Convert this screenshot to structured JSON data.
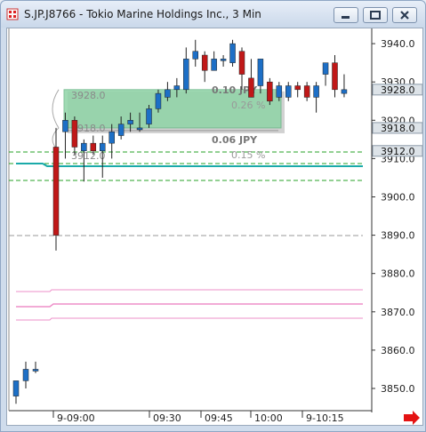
{
  "window": {
    "title": "S.JP.J8766 - Tokio Marine Holdings Inc., 3 Min",
    "controls": [
      "minimize",
      "maximize",
      "close"
    ]
  },
  "chart_data": {
    "type": "candlestick",
    "symbol": "S.JP.J8766",
    "interval": "3 Min",
    "ylim": [
      3843,
      3948
    ],
    "y_ticks": [
      "3940.0",
      "3930.0",
      "3920.0",
      "3910.0",
      "3900.0",
      "3890.0",
      "3880.0",
      "3870.0",
      "3860.0",
      "3850.0"
    ],
    "x_ticks": [
      "9-09:00",
      "09:30",
      "09:45",
      "10:00",
      "9-10:15"
    ],
    "price_markers": [
      {
        "value": 3928,
        "label": "3928.0"
      },
      {
        "value": 3918,
        "label": "3918.0"
      },
      {
        "value": 3912,
        "label": "3912.0"
      }
    ],
    "candles": [
      {
        "o": 3848,
        "h": 3852,
        "l": 3846,
        "c": 3852
      },
      {
        "o": 3852,
        "h": 3857,
        "l": 3850,
        "c": 3855
      },
      {
        "o": 3855,
        "h": 3857,
        "l": 3854,
        "c": 3855
      },
      {
        "o": 3913,
        "h": 3918,
        "l": 3886,
        "c": 3890
      },
      {
        "o": 3917,
        "h": 3922,
        "l": 3910,
        "c": 3920
      },
      {
        "o": 3920,
        "h": 3921,
        "l": 3911,
        "c": 3913
      },
      {
        "o": 3912,
        "h": 3915,
        "l": 3904,
        "c": 3914
      },
      {
        "o": 3914,
        "h": 3916,
        "l": 3911,
        "c": 3912
      },
      {
        "o": 3912,
        "h": 3916,
        "l": 3905,
        "c": 3914
      },
      {
        "o": 3914,
        "h": 3919,
        "l": 3910,
        "c": 3917
      },
      {
        "o": 3916,
        "h": 3921,
        "l": 3915,
        "c": 3919
      },
      {
        "o": 3919,
        "h": 3922,
        "l": 3917,
        "c": 3920
      },
      {
        "o": 3918,
        "h": 3922,
        "l": 3917,
        "c": 3918
      },
      {
        "o": 3919,
        "h": 3924,
        "l": 3918,
        "c": 3923
      },
      {
        "o": 3923,
        "h": 3928,
        "l": 3922,
        "c": 3927
      },
      {
        "o": 3926,
        "h": 3930,
        "l": 3925,
        "c": 3928
      },
      {
        "o": 3928,
        "h": 3931,
        "l": 3926,
        "c": 3929
      },
      {
        "o": 3928,
        "h": 3939,
        "l": 3927,
        "c": 3936
      },
      {
        "o": 3936,
        "h": 3941,
        "l": 3934,
        "c": 3938
      },
      {
        "o": 3937,
        "h": 3938,
        "l": 3930,
        "c": 3933
      },
      {
        "o": 3933,
        "h": 3938,
        "l": 3933,
        "c": 3936
      },
      {
        "o": 3936,
        "h": 3937,
        "l": 3934,
        "c": 3936
      },
      {
        "o": 3935,
        "h": 3941,
        "l": 3934,
        "c": 3940
      },
      {
        "o": 3938,
        "h": 3939,
        "l": 3928,
        "c": 3932
      },
      {
        "o": 3931,
        "h": 3936,
        "l": 3926,
        "c": 3926
      },
      {
        "o": 3929,
        "h": 3936,
        "l": 3927,
        "c": 3936
      },
      {
        "o": 3930,
        "h": 3931,
        "l": 3924,
        "c": 3925
      },
      {
        "o": 3926,
        "h": 3930,
        "l": 3925,
        "c": 3929
      },
      {
        "o": 3926,
        "h": 3930,
        "l": 3925,
        "c": 3929
      },
      {
        "o": 3929,
        "h": 3930,
        "l": 3926,
        "c": 3928
      },
      {
        "o": 3929,
        "h": 3930,
        "l": 3925,
        "c": 3926
      },
      {
        "o": 3926,
        "h": 3930,
        "l": 3922,
        "c": 3929
      },
      {
        "o": 3932,
        "h": 3935,
        "l": 3929,
        "c": 3935
      },
      {
        "o": 3935,
        "h": 3937,
        "l": 3926,
        "c": 3928
      },
      {
        "o": 3927,
        "h": 3932,
        "l": 3926,
        "c": 3928
      }
    ],
    "ruler": {
      "from": 3912,
      "to": 3928,
      "labels": [
        "3928.0",
        "3918.0",
        "3912.0"
      ],
      "annotations": [
        {
          "text": "0.10  JPY",
          "price": 3928
        },
        {
          "text": "0.26 %",
          "price": 3924
        },
        {
          "text": "0.06  JPY",
          "price": 3915
        },
        {
          "text": "0.15 %",
          "price": 3911
        }
      ]
    },
    "colors": {
      "up": "#1d6fc6",
      "down": "#c01818",
      "box_fill": "#8fd4a6",
      "line_teal": "#1aaaa9",
      "line_green_dash": "#27a227",
      "line_gray_dash": "#999999",
      "line_pink": "#ee8fc9",
      "marker_bg": "#dde3e8",
      "scroll_arrow": "#e41313"
    }
  }
}
